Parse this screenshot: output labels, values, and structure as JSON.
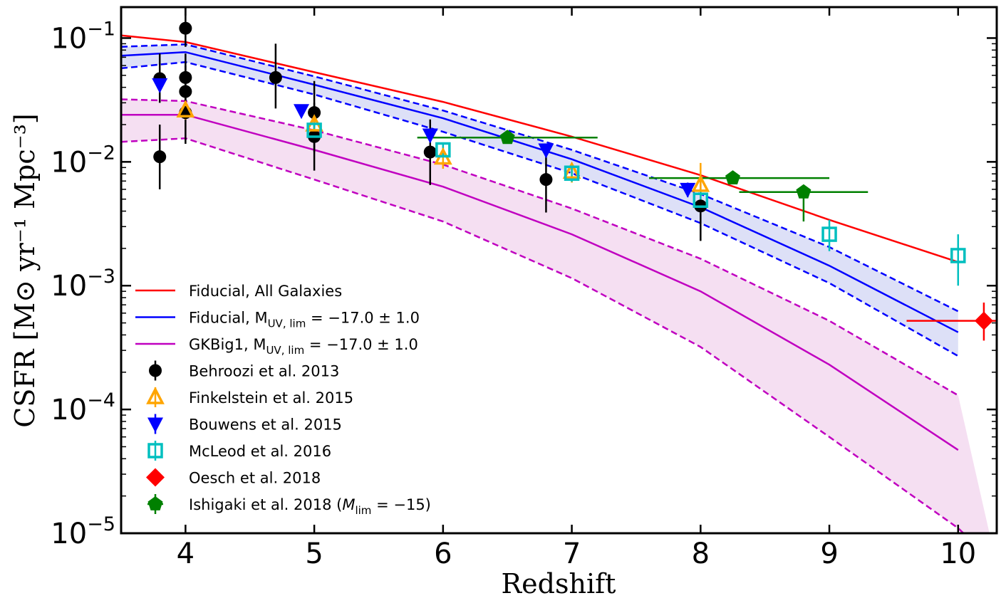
{
  "chart_data": {
    "type": "scatter",
    "xlabel": "Redshift",
    "ylabel": "CSFR [M⊙ yr⁻¹ Mpc⁻³]",
    "xlim": [
      3.5,
      10.3
    ],
    "ylim_log10": [
      -5,
      -0.75
    ],
    "yscale": "log",
    "grid": false,
    "legend_position": "lower-left",
    "x_ticks": [
      "4",
      "5",
      "6",
      "7",
      "8",
      "9",
      "10"
    ],
    "y_ticks": [
      {
        "base": "10",
        "exp": "−1",
        "log": -1
      },
      {
        "base": "10",
        "exp": "−2",
        "log": -2
      },
      {
        "base": "10",
        "exp": "−3",
        "log": -3
      },
      {
        "base": "10",
        "exp": "−4",
        "log": -4
      },
      {
        "base": "10",
        "exp": "−5",
        "log": -5
      }
    ],
    "colors": {
      "fiducial_all": "#ff0000",
      "fiducial_band": "#0000ff",
      "gkbig1_band": "#c000c0",
      "behroozi": "#000000",
      "finkelstein": "#ffa500",
      "bouwens": "#0000ff",
      "mcleod": "#00bfbf",
      "oesch": "#ff0000",
      "ishigaki": "#008000"
    },
    "curves": {
      "fiducial_all": {
        "x": [
          3.5,
          4,
          5,
          6,
          7,
          8,
          9,
          10
        ],
        "y": [
          0.105,
          0.093,
          0.053,
          0.0305,
          0.016,
          0.0078,
          0.0034,
          0.00155
        ]
      },
      "fiducial": {
        "x": [
          3.5,
          4,
          5,
          6,
          7,
          8,
          9,
          10
        ],
        "mid": [
          0.072,
          0.077,
          0.042,
          0.0225,
          0.0105,
          0.0043,
          0.00145,
          0.00042
        ],
        "upper": [
          0.085,
          0.089,
          0.049,
          0.026,
          0.0125,
          0.0055,
          0.00205,
          0.00062
        ],
        "lower": [
          0.057,
          0.064,
          0.035,
          0.0175,
          0.0081,
          0.0032,
          0.00105,
          0.00027
        ]
      },
      "gkbig1": {
        "x": [
          3.5,
          4,
          5,
          6,
          7,
          8,
          9,
          10,
          10.3
        ],
        "mid": [
          0.024,
          0.024,
          0.0125,
          0.0063,
          0.0026,
          0.0009,
          0.00023,
          4.7e-05,
          null
        ],
        "upper": [
          0.032,
          0.031,
          0.018,
          0.0095,
          0.0042,
          0.00165,
          0.00052,
          0.00013,
          null
        ],
        "lower": [
          0.0145,
          0.0155,
          0.0072,
          0.0033,
          0.00115,
          0.00032,
          6e-05,
          1.1e-05,
          5.5e-06
        ]
      }
    },
    "points": {
      "behroozi": [
        {
          "x": 3.8,
          "y": 0.047,
          "lo": 0.03,
          "hi": 0.075
        },
        {
          "x": 3.8,
          "y": 0.011,
          "lo": 0.006,
          "hi": 0.02
        },
        {
          "x": 4.0,
          "y": 0.12,
          "lo": 0.085,
          "hi": 0.185
        },
        {
          "x": 4.0,
          "y": 0.048,
          "lo": 0.03,
          "hi": 0.075
        },
        {
          "x": 4.0,
          "y": 0.037,
          "lo": 0.022,
          "hi": 0.06
        },
        {
          "x": 4.0,
          "y": 0.025,
          "lo": 0.014,
          "hi": 0.04
        },
        {
          "x": 4.7,
          "y": 0.048,
          "lo": 0.027,
          "hi": 0.09
        },
        {
          "x": 5.0,
          "y": 0.025,
          "lo": 0.012,
          "hi": 0.045
        },
        {
          "x": 5.0,
          "y": 0.016,
          "lo": 0.0085,
          "hi": 0.03
        },
        {
          "x": 5.9,
          "y": 0.012,
          "lo": 0.0065,
          "hi": 0.022
        },
        {
          "x": 6.8,
          "y": 0.0072,
          "lo": 0.0039,
          "hi": 0.0125
        },
        {
          "x": 8.0,
          "y": 0.0044,
          "lo": 0.0023,
          "hi": 0.0078
        }
      ],
      "finkelstein": [
        {
          "x": 4.0,
          "y": 0.026,
          "lo": 0.022,
          "hi": 0.031
        },
        {
          "x": 5.0,
          "y": 0.02,
          "lo": 0.016,
          "hi": 0.025
        },
        {
          "x": 6.0,
          "y": 0.0108,
          "lo": 0.0088,
          "hi": 0.0132
        },
        {
          "x": 7.0,
          "y": 0.0083,
          "lo": 0.0068,
          "hi": 0.0098
        },
        {
          "x": 8.0,
          "y": 0.0065,
          "lo": 0.0048,
          "hi": 0.0098
        }
      ],
      "bouwens": [
        {
          "x": 3.8,
          "y": 0.042,
          "lo": 0.038,
          "hi": 0.046
        },
        {
          "x": 4.9,
          "y": 0.026,
          "lo": 0.023,
          "hi": 0.029
        },
        {
          "x": 5.9,
          "y": 0.0165,
          "lo": 0.0145,
          "hi": 0.0185
        },
        {
          "x": 6.8,
          "y": 0.0125,
          "lo": 0.011,
          "hi": 0.014
        },
        {
          "x": 7.9,
          "y": 0.006,
          "lo": 0.0052,
          "hi": 0.0068
        }
      ],
      "mcleod": [
        {
          "x": 5.0,
          "y": 0.018,
          "lo": 0.016,
          "hi": 0.02
        },
        {
          "x": 6.0,
          "y": 0.0125,
          "lo": 0.011,
          "hi": 0.0142
        },
        {
          "x": 7.0,
          "y": 0.0081,
          "lo": 0.0069,
          "hi": 0.0093
        },
        {
          "x": 8.0,
          "y": 0.0049,
          "lo": 0.0041,
          "hi": 0.0059
        },
        {
          "x": 9.0,
          "y": 0.0026,
          "lo": 0.0019,
          "hi": 0.0034
        },
        {
          "x": 10.0,
          "y": 0.00175,
          "lo": 0.001,
          "hi": 0.0026
        }
      ],
      "oesch": [
        {
          "x": 10.2,
          "y": 0.00052,
          "lo": 0.00036,
          "hi": 0.00073,
          "xlo": 9.6,
          "xhi": 10.3
        }
      ],
      "ishigaki": [
        {
          "x": 6.5,
          "y": 0.0157,
          "xlo": 5.8,
          "xhi": 7.2
        },
        {
          "x": 8.25,
          "y": 0.0074,
          "xlo": 7.6,
          "xhi": 9.0
        },
        {
          "x": 8.8,
          "y": 0.0057,
          "lo": 0.0033,
          "hi": 0.0065,
          "xlo": 8.3,
          "xhi": 9.3
        }
      ]
    },
    "legend": [
      {
        "key": "fiducial_all",
        "kind": "line",
        "label": "Fiducial, All Galaxies"
      },
      {
        "key": "fiducial_band",
        "kind": "line",
        "label_main": "Fiducial, M",
        "label_sub": "UV, lim",
        "label_tail": " = −17.0 ± 1.0"
      },
      {
        "key": "gkbig1_band",
        "kind": "line",
        "label_main": "GKBig1, M",
        "label_sub": "UV, lim",
        "label_tail": " = −17.0 ± 1.0"
      },
      {
        "key": "behroozi",
        "kind": "circle",
        "label": "Behroozi et al. 2013"
      },
      {
        "key": "finkelstein",
        "kind": "triangle-up",
        "label": "Finkelstein et al. 2015"
      },
      {
        "key": "bouwens",
        "kind": "triangle-down",
        "label": "Bouwens et al. 2015"
      },
      {
        "key": "mcleod",
        "kind": "square",
        "label": "McLeod et al. 2016"
      },
      {
        "key": "oesch",
        "kind": "diamond",
        "label": "Oesch et al. 2018"
      },
      {
        "key": "ishigaki",
        "kind": "pentagon",
        "label_main": "Ishigaki et al. 2018 (",
        "label_italic": "M",
        "label_sub": "lim",
        "label_tail": " = −15)"
      }
    ]
  }
}
